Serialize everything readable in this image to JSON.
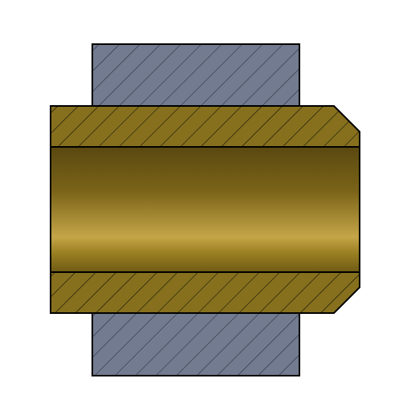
{
  "diagram": {
    "kind": "cross-section",
    "parts": [
      {
        "id": "housing",
        "material": "steel",
        "color": "#727b8f",
        "hatch": "diagonal"
      },
      {
        "id": "bushing",
        "material": "bronze",
        "color": "#86701e",
        "hatch": "diagonal",
        "features": [
          "chamfer-right"
        ]
      },
      {
        "id": "bore",
        "surface": "cylindrical",
        "gradient": [
          "#5a4810",
          "#6e5a14",
          "#c4a548",
          "#8a721c",
          "#6e5a14"
        ]
      }
    ],
    "colors": {
      "outline": "#000000",
      "hatch_line": "#1f2533",
      "background": "#ffffff"
    }
  }
}
